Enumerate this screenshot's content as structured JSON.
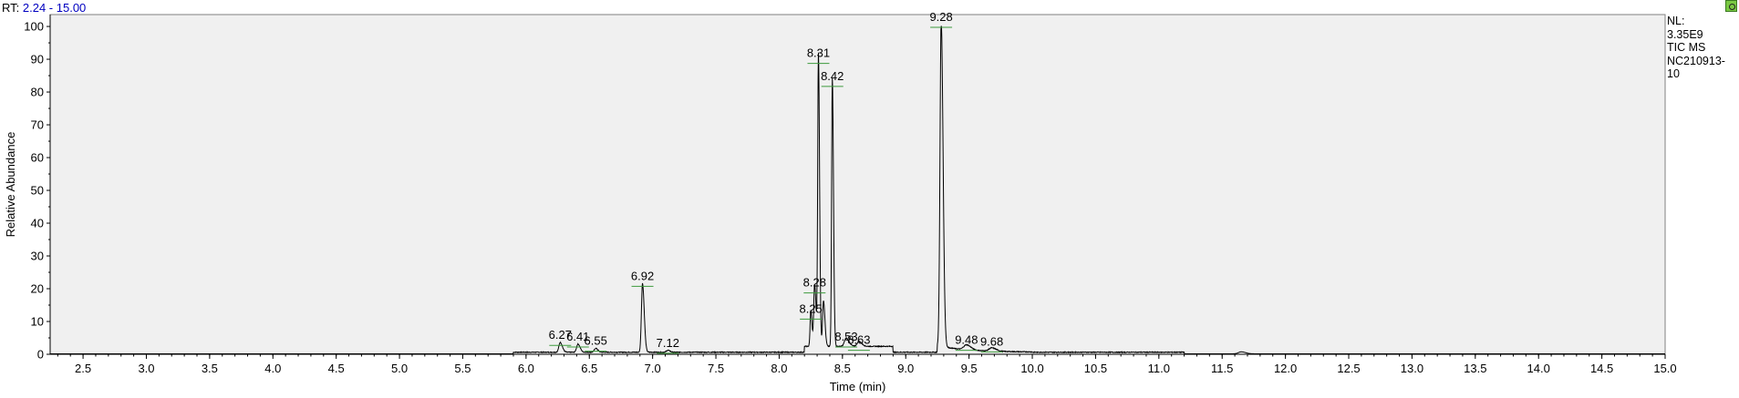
{
  "header": {
    "rt_prefix": "RT:",
    "rt_range": "2.24 - 15.00"
  },
  "info": {
    "nl_label": "NL:",
    "nl_value": "3.35E9",
    "scan_filter": "TIC  MS",
    "sample_line1": "NC210913-",
    "sample_line2": "10"
  },
  "icons": {
    "corner": "settings-gear-icon"
  },
  "chart_data": {
    "type": "line",
    "xlabel": "Time (min)",
    "ylabel": "Relative Abundance",
    "xlim": [
      2.24,
      15.0
    ],
    "ylim": [
      0,
      100
    ],
    "x_ticks": [
      "2.5",
      "3.0",
      "3.5",
      "4.0",
      "4.5",
      "5.0",
      "5.5",
      "6.0",
      "6.5",
      "7.0",
      "7.5",
      "8.0",
      "8.5",
      "9.0",
      "9.5",
      "10.0",
      "10.5",
      "11.0",
      "11.5",
      "12.0",
      "12.5",
      "13.0",
      "13.5",
      "14.0",
      "14.5",
      "15.0"
    ],
    "y_ticks": [
      "0",
      "10",
      "20",
      "30",
      "40",
      "50",
      "60",
      "70",
      "80",
      "90",
      "100"
    ],
    "line_color": "#000000",
    "background": "#f0f0f0",
    "peaks": [
      {
        "rt": 6.27,
        "height": 3.0,
        "width": 0.015,
        "label": "6.27"
      },
      {
        "rt": 6.41,
        "height": 2.5,
        "width": 0.015,
        "label": "6.41"
      },
      {
        "rt": 6.55,
        "height": 1.2,
        "width": 0.015,
        "label": "6.55"
      },
      {
        "rt": 6.92,
        "height": 21.0,
        "width": 0.012,
        "label": "6.92"
      },
      {
        "rt": 7.12,
        "height": 0.6,
        "width": 0.015,
        "label": "7.12"
      },
      {
        "rt": 8.25,
        "height": 11.0,
        "width": 0.008,
        "label": "8.25"
      },
      {
        "rt": 8.28,
        "height": 19.0,
        "width": 0.01,
        "label": "8.28"
      },
      {
        "rt": 8.31,
        "height": 89.0,
        "width": 0.008,
        "label": "8.31"
      },
      {
        "rt": 8.35,
        "height": 14.0,
        "width": 0.01,
        "label": ""
      },
      {
        "rt": 8.42,
        "height": 82.0,
        "width": 0.008,
        "label": "8.42"
      },
      {
        "rt": 8.53,
        "height": 2.5,
        "width": 0.02,
        "label": "8.53"
      },
      {
        "rt": 8.63,
        "height": 1.5,
        "width": 0.02,
        "label": "8.63"
      },
      {
        "rt": 9.28,
        "height": 100.0,
        "width": 0.013,
        "label": "9.28"
      },
      {
        "rt": 9.48,
        "height": 1.5,
        "width": 0.03,
        "label": "9.48"
      },
      {
        "rt": 9.68,
        "height": 1.0,
        "width": 0.03,
        "label": "9.68"
      },
      {
        "rt": 11.65,
        "height": 0.6,
        "width": 0.03,
        "label": ""
      }
    ]
  }
}
